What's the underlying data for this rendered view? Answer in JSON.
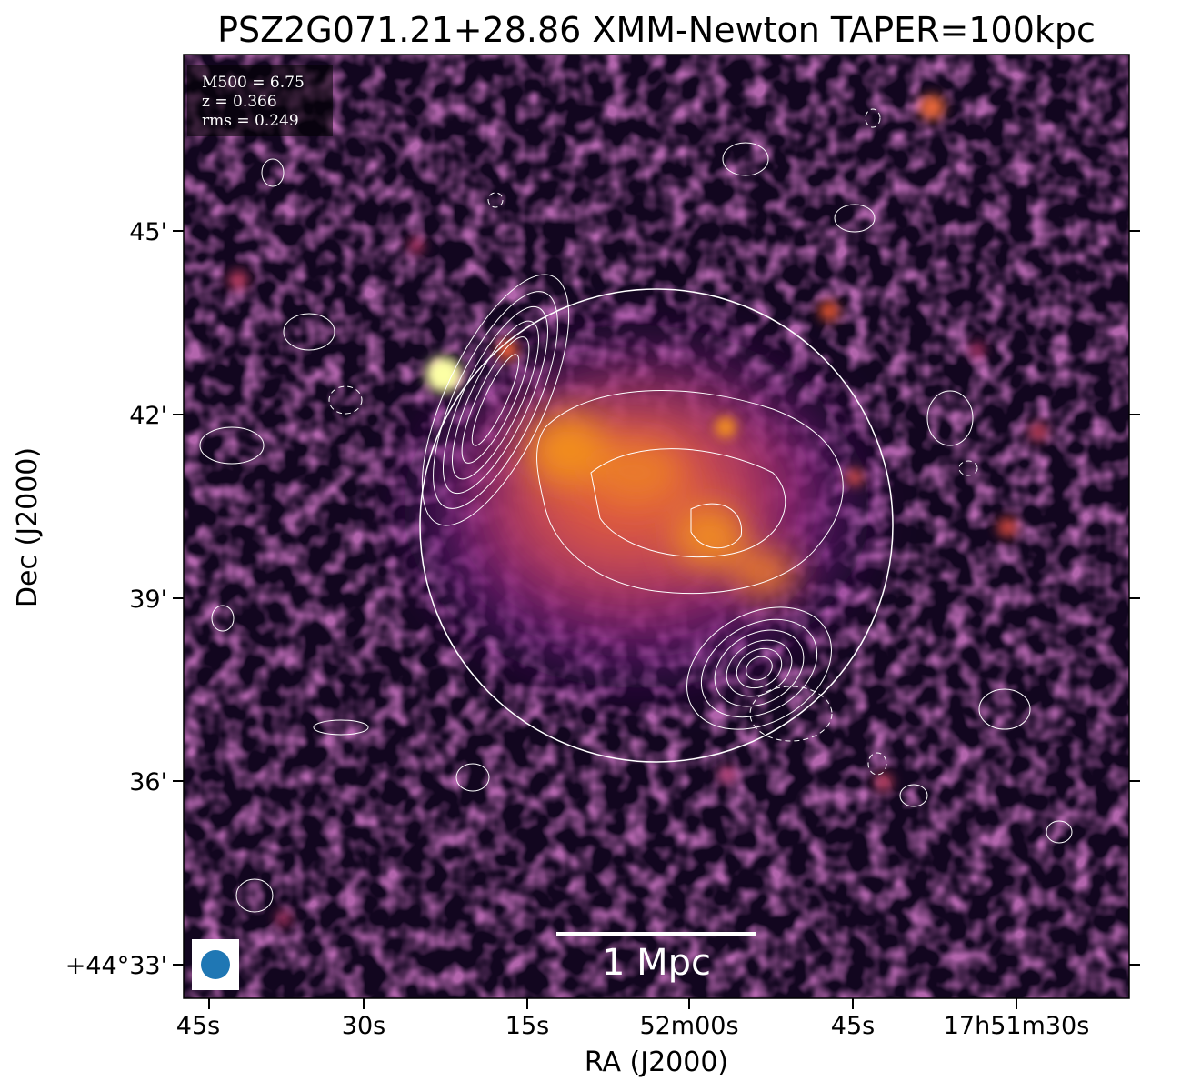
{
  "title": "PSZ2G071.21+28.86 XMM-Newton TAPER=100kpc",
  "axes": {
    "xlabel": "RA (J2000)",
    "ylabel": "Dec (J2000)",
    "ra_ticks": [
      "45s",
      "30s",
      "15s",
      "52m00s",
      "45s",
      "17h51m30s"
    ],
    "dec_ticks": [
      "45'",
      "42'",
      "39'",
      "36'",
      "+44°33'"
    ]
  },
  "info": {
    "m500": "M500 = 6.75",
    "z": "z = 0.366",
    "rms": "rms = 0.249"
  },
  "scalebar": {
    "label": "1 Mpc"
  },
  "colors": {
    "colormap": "inferno",
    "contour": "#ffffff",
    "beam": "#1f77b4",
    "circle": "#ffffff"
  },
  "legend": {
    "beam": "beam-ellipse"
  }
}
